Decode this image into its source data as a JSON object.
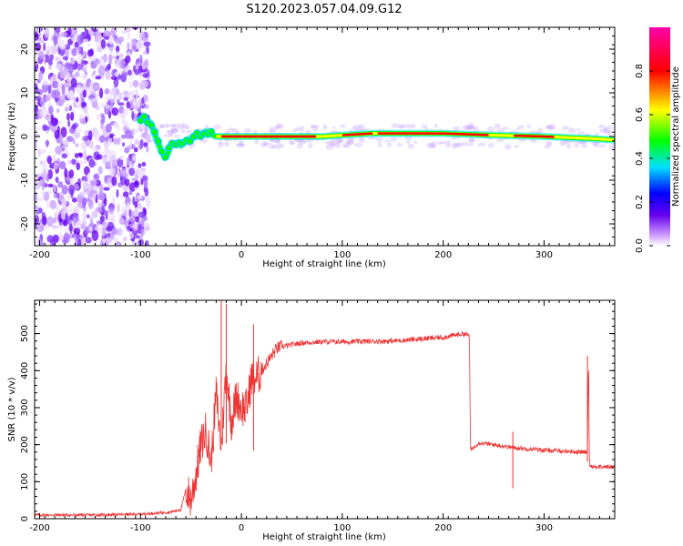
{
  "title": "S120.2023.057.04.09.G12",
  "chart_data": [
    {
      "type": "heatmap",
      "xlabel": "Height of straight line (km)",
      "ylabel": "Frequency (Hz)",
      "xlim": [
        -205,
        370
      ],
      "ylim": [
        -25,
        25
      ],
      "xticks": [
        -200,
        -100,
        0,
        100,
        200,
        300
      ],
      "yticks": [
        -20,
        -10,
        0,
        10,
        20
      ],
      "colorbar": {
        "label": "Normalized spectral amplitude",
        "range": [
          0,
          1
        ],
        "ticks": [
          0.0,
          0.2,
          0.4,
          0.6,
          0.8
        ],
        "colors": [
          "#ffffff",
          "#cc99ff",
          "#6600ee",
          "#0000ff",
          "#00e0ff",
          "#00ff00",
          "#ffff00",
          "#ff0000",
          "#ff00aa"
        ]
      },
      "ridge": {
        "x": [
          -100,
          -95,
          -90,
          -85,
          -80,
          -75,
          -70,
          -65,
          -60,
          -55,
          -50,
          -45,
          -40,
          -35,
          -30,
          -25,
          0,
          50,
          80,
          100,
          130,
          200,
          250,
          300,
          350,
          370
        ],
        "y": [
          4,
          4,
          3,
          0,
          -3,
          -5,
          -2,
          -1.5,
          -2,
          -1,
          -0.5,
          0,
          0.5,
          1.2,
          0.5,
          0,
          0,
          0,
          0,
          0.3,
          0.7,
          0.7,
          0.3,
          0,
          -0.5,
          -0.8
        ]
      },
      "noise_region": {
        "x_range": [
          -205,
          -92
        ],
        "y_range": [
          -25,
          25
        ]
      }
    },
    {
      "type": "line",
      "xlabel": "Height of straight line (km)",
      "ylabel": "SNR (10 * v/v)",
      "xlim": [
        -205,
        370
      ],
      "ylim": [
        0,
        590
      ],
      "xticks": [
        -200,
        -100,
        0,
        100,
        200,
        300
      ],
      "yticks": [
        0,
        100,
        200,
        300,
        400,
        500
      ],
      "color": "#ee3333",
      "series": [
        {
          "x": [
            -205,
            -150,
            -100,
            -70,
            -60,
            -55,
            -50,
            -45,
            -40,
            -35,
            -30,
            -25,
            -20,
            -15,
            -10,
            -5,
            0,
            5,
            10,
            15,
            20,
            25,
            30,
            35,
            40,
            50,
            60,
            80,
            100,
            150,
            200,
            220,
            226,
            227,
            235,
            250,
            270,
            300,
            340,
            343,
            344,
            345,
            350,
            370
          ],
          "y": [
            10,
            10,
            12,
            18,
            25,
            80,
            50,
            120,
            200,
            240,
            150,
            340,
            190,
            410,
            260,
            330,
            300,
            300,
            380,
            380,
            400,
            420,
            440,
            460,
            465,
            470,
            475,
            478,
            478,
            480,
            490,
            500,
            495,
            185,
            205,
            200,
            192,
            185,
            180,
            180,
            440,
            145,
            140,
            140
          ]
        }
      ],
      "spikes": [
        {
          "x": -20,
          "y": 590
        },
        {
          "x": -15,
          "y": 580
        },
        {
          "x": 12,
          "y": 525
        },
        {
          "x": 269,
          "y": 235
        },
        {
          "x": 343,
          "y": 440
        }
      ]
    }
  ]
}
